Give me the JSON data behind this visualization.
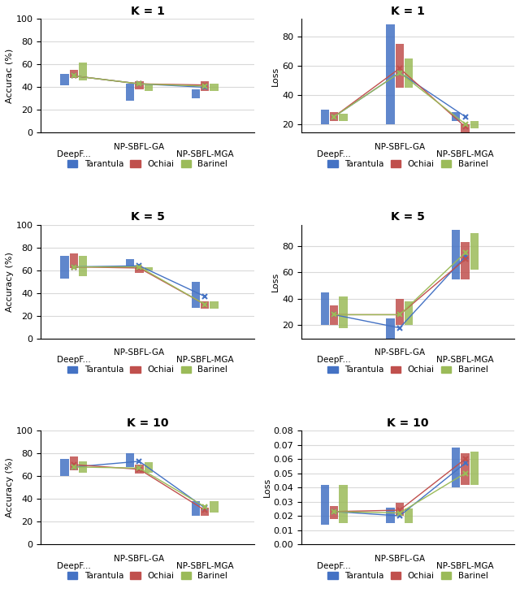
{
  "plots": [
    {
      "title": "K = 1",
      "ylabel": "Accurac (%)",
      "ylim": [
        0,
        100
      ],
      "yticks": [
        0,
        20,
        40,
        60,
        80,
        100
      ],
      "bars": {
        "Tarantula": [
          52,
          43,
          38
        ],
        "Ochiai": [
          55,
          45,
          45
        ],
        "Barinel": [
          62,
          43,
          43
        ]
      },
      "bar_bottoms": {
        "Tarantula": [
          42,
          28,
          30
        ],
        "Ochiai": [
          48,
          38,
          37
        ],
        "Barinel": [
          46,
          37,
          37
        ]
      },
      "line_points": {
        "Tarantula": [
          50,
          43,
          40
        ],
        "Ochiai": [
          50,
          43,
          42
        ],
        "Barinel": [
          50,
          43,
          41
        ]
      }
    },
    {
      "title": "K = 1",
      "ylabel": "Loss",
      "ylim_auto": true,
      "bars": {
        "Tarantula": [
          30,
          88,
          28
        ],
        "Ochiai": [
          28,
          75,
          20
        ],
        "Barinel": [
          27,
          65,
          22
        ]
      },
      "bar_bottoms": {
        "Tarantula": [
          20,
          20,
          22
        ],
        "Ochiai": [
          22,
          45,
          14
        ],
        "Barinel": [
          22,
          45,
          17
        ]
      },
      "line_points": {
        "Tarantula": [
          25,
          55,
          25
        ],
        "Ochiai": [
          25,
          58,
          18
        ],
        "Barinel": [
          25,
          55,
          20
        ]
      }
    },
    {
      "title": "K = 5",
      "ylabel": "Accuracy (%)",
      "ylim": [
        0,
        100
      ],
      "yticks": [
        0,
        20,
        40,
        60,
        80,
        100
      ],
      "bars": {
        "Tarantula": [
          73,
          70,
          50
        ],
        "Ochiai": [
          75,
          63,
          33
        ],
        "Barinel": [
          73,
          63,
          33
        ]
      },
      "bar_bottoms": {
        "Tarantula": [
          53,
          62,
          27
        ],
        "Ochiai": [
          62,
          58,
          26
        ],
        "Barinel": [
          55,
          60,
          26
        ]
      },
      "line_points": {
        "Tarantula": [
          63,
          64,
          37
        ],
        "Ochiai": [
          63,
          62,
          30
        ],
        "Barinel": [
          63,
          63,
          30
        ]
      }
    },
    {
      "title": "K = 5",
      "ylabel": "Loss",
      "ylim_auto": true,
      "bars": {
        "Tarantula": [
          45,
          25,
          92
        ],
        "Ochiai": [
          35,
          40,
          83
        ],
        "Barinel": [
          42,
          38,
          90
        ]
      },
      "bar_bottoms": {
        "Tarantula": [
          20,
          10,
          55
        ],
        "Ochiai": [
          20,
          20,
          55
        ],
        "Barinel": [
          18,
          20,
          62
        ]
      },
      "line_points": {
        "Tarantula": [
          28,
          18,
          72
        ],
        "Ochiai": [
          28,
          28,
          70
        ],
        "Barinel": [
          28,
          28,
          75
        ]
      }
    },
    {
      "title": "K = 10",
      "ylabel": "Accuracy (%)",
      "ylim": [
        0,
        100
      ],
      "yticks": [
        0,
        20,
        40,
        60,
        80,
        100
      ],
      "bars": {
        "Tarantula": [
          75,
          80,
          38
        ],
        "Ochiai": [
          77,
          70,
          32
        ],
        "Barinel": [
          73,
          72,
          38
        ]
      },
      "bar_bottoms": {
        "Tarantula": [
          60,
          68,
          25
        ],
        "Ochiai": [
          65,
          62,
          25
        ],
        "Barinel": [
          63,
          63,
          28
        ]
      },
      "line_points": {
        "Tarantula": [
          68,
          73,
          32
        ],
        "Ochiai": [
          70,
          66,
          30
        ],
        "Barinel": [
          68,
          67,
          33
        ]
      }
    },
    {
      "title": "K = 10",
      "ylabel": "Loss",
      "ylim": [
        0,
        0.08
      ],
      "yticks": [
        0,
        0.01,
        0.02,
        0.03,
        0.04,
        0.05,
        0.06,
        0.07,
        0.08
      ],
      "bars": {
        "Tarantula": [
          0.042,
          0.026,
          0.068
        ],
        "Ochiai": [
          0.027,
          0.029,
          0.064
        ],
        "Barinel": [
          0.042,
          0.025,
          0.065
        ]
      },
      "bar_bottoms": {
        "Tarantula": [
          0.014,
          0.015,
          0.04
        ],
        "Ochiai": [
          0.018,
          0.02,
          0.042
        ],
        "Barinel": [
          0.015,
          0.015,
          0.042
        ]
      },
      "line_points": {
        "Tarantula": [
          0.023,
          0.02,
          0.057
        ],
        "Ochiai": [
          0.023,
          0.024,
          0.06
        ],
        "Barinel": [
          0.023,
          0.022,
          0.05
        ]
      }
    }
  ],
  "colors": {
    "Tarantula": "#4472C4",
    "Ochiai": "#C0504D",
    "Barinel": "#9BBB59"
  },
  "background_color": "#FFFFFF",
  "grid_color": "#D9D9D9",
  "x_positions": [
    1,
    3,
    5
  ],
  "x_label_top": "NP-SBFL-GA",
  "x_label_left": "DeepF...",
  "x_label_right": "NP-SBFL-MGA"
}
